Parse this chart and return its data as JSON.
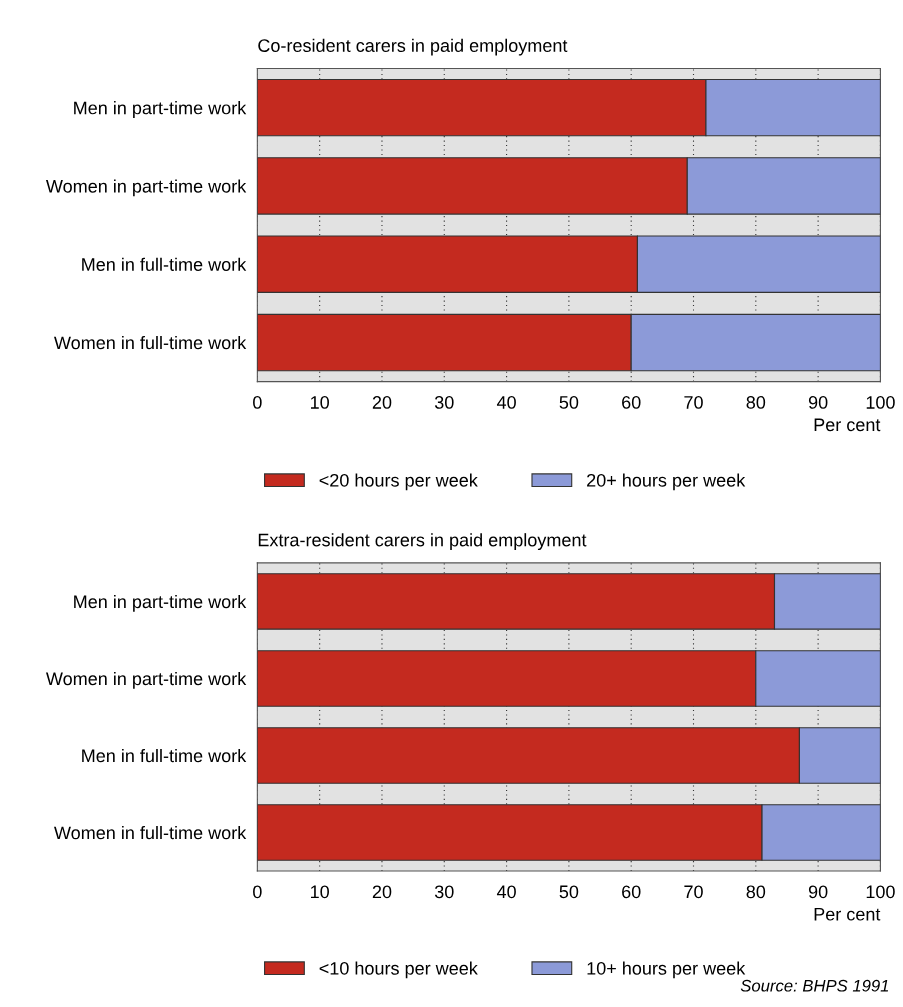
{
  "chart_data": [
    {
      "type": "bar",
      "orientation": "horizontal",
      "stacked": true,
      "title": "Co-resident carers in paid employment",
      "xlabel": "Per cent",
      "categories": [
        "Men in part-time work",
        "Women in part-time work",
        "Men in full-time work",
        "Women in full-time work"
      ],
      "series": [
        {
          "name": "<20 hours per week",
          "color": "#c42a1f",
          "values": [
            72,
            69,
            61,
            60
          ]
        },
        {
          "name": "20+ hours per week",
          "color": "#8c9ad8",
          "values": [
            28,
            31,
            39,
            40
          ]
        }
      ],
      "xlim": [
        0,
        100
      ],
      "xticks": [
        0,
        10,
        20,
        30,
        40,
        50,
        60,
        70,
        80,
        90,
        100
      ],
      "grid": "x",
      "legend": "bottom"
    },
    {
      "type": "bar",
      "orientation": "horizontal",
      "stacked": true,
      "title": "Extra-resident carers in paid employment",
      "xlabel": "Per cent",
      "categories": [
        "Men in part-time work",
        "Women in part-time work",
        "Men in full-time work",
        "Women in full-time work"
      ],
      "series": [
        {
          "name": "<10 hours per week",
          "color": "#c42a1f",
          "values": [
            83,
            80,
            87,
            81
          ]
        },
        {
          "name": "10+ hours per week",
          "color": "#8c9ad8",
          "values": [
            17,
            20,
            13,
            19
          ]
        }
      ],
      "xlim": [
        0,
        100
      ],
      "xticks": [
        0,
        10,
        20,
        30,
        40,
        50,
        60,
        70,
        80,
        90,
        100
      ],
      "grid": "x",
      "legend": "bottom",
      "annotations": [
        "Source: BHPS 1991"
      ]
    }
  ]
}
